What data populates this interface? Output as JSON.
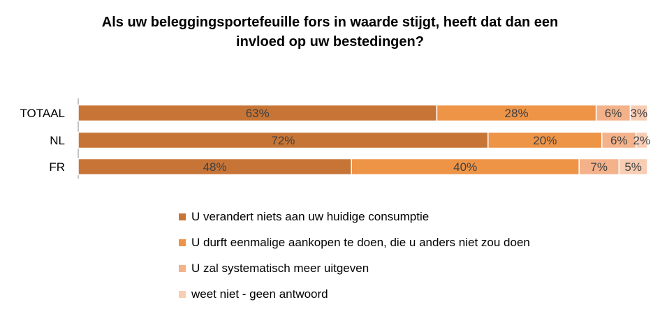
{
  "chart_data": {
    "type": "bar",
    "orientation": "horizontal",
    "stacked": true,
    "title_lines": [
      "Als uw beleggingsportefeuille fors in waarde stijgt, heeft dat dan een",
      "invloed op uw bestedingen?"
    ],
    "categories": [
      "TOTAAL",
      "NL",
      "FR"
    ],
    "series": [
      {
        "name": "U verandert niets aan uw huidige consumptie",
        "values": [
          63,
          72,
          48
        ],
        "labels": [
          "63%",
          "72%",
          "48%"
        ],
        "color": "#C77537"
      },
      {
        "name": "U durft eenmalige aankopen te doen, die u anders niet zou doen",
        "values": [
          28,
          20,
          40
        ],
        "labels": [
          "28%",
          "20%",
          "40%"
        ],
        "color": "#EE9447"
      },
      {
        "name": "U zal systematisch meer uitgeven",
        "values": [
          6,
          6,
          7
        ],
        "labels": [
          "6%",
          "6%",
          "7%"
        ],
        "color": "#F4B28A"
      },
      {
        "name": "weet niet - geen antwoord",
        "values": [
          3,
          2,
          5
        ],
        "labels": [
          "3%",
          "2%",
          "5%"
        ],
        "color": "#F8CDB3"
      }
    ],
    "xlim": [
      0,
      100
    ],
    "grid": false,
    "legend_position": "bottom"
  }
}
